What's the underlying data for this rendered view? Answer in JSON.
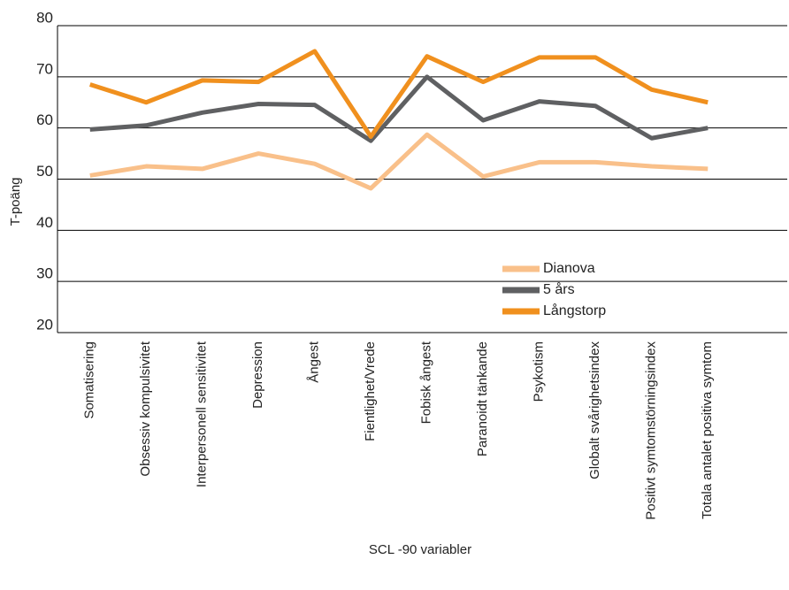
{
  "chart_data": {
    "type": "line",
    "y_label": "T-poäng",
    "x_label": "SCL -90 variabler",
    "categories": [
      "Somatisering",
      "Obsessiv kompulsivitet",
      "Interpersonell sensitivitet",
      "Depression",
      "Ångest",
      "Fientlighet/Vrede",
      "Fobisk ångest",
      "Paranoidt tänkande",
      "Psykotism",
      "Globalt svårighetsindex",
      "Positivt symtomstörningsindex",
      "Totala antalet positiva symtom"
    ],
    "series": [
      {
        "name": "Dianova",
        "color": "#f9c08a",
        "values": [
          50.7,
          52.5,
          52,
          55,
          53,
          48.2,
          58.7,
          50.5,
          53.3,
          53.3,
          52.5,
          52
        ]
      },
      {
        "name": "5 års",
        "color": "#5f6062",
        "values": [
          59.7,
          60.5,
          63,
          64.7,
          64.5,
          57.5,
          70,
          61.5,
          65.2,
          64.3,
          58,
          60
        ]
      },
      {
        "name": "Långstorp",
        "color": "#f0901e",
        "values": [
          68.5,
          65,
          69.3,
          69,
          75,
          58.3,
          74,
          69,
          73.8,
          73.8,
          67.5,
          65
        ]
      }
    ],
    "ylim": [
      20,
      80
    ],
    "yticks": [
      20,
      30,
      40,
      50,
      60,
      70,
      80
    ],
    "grid": true
  }
}
